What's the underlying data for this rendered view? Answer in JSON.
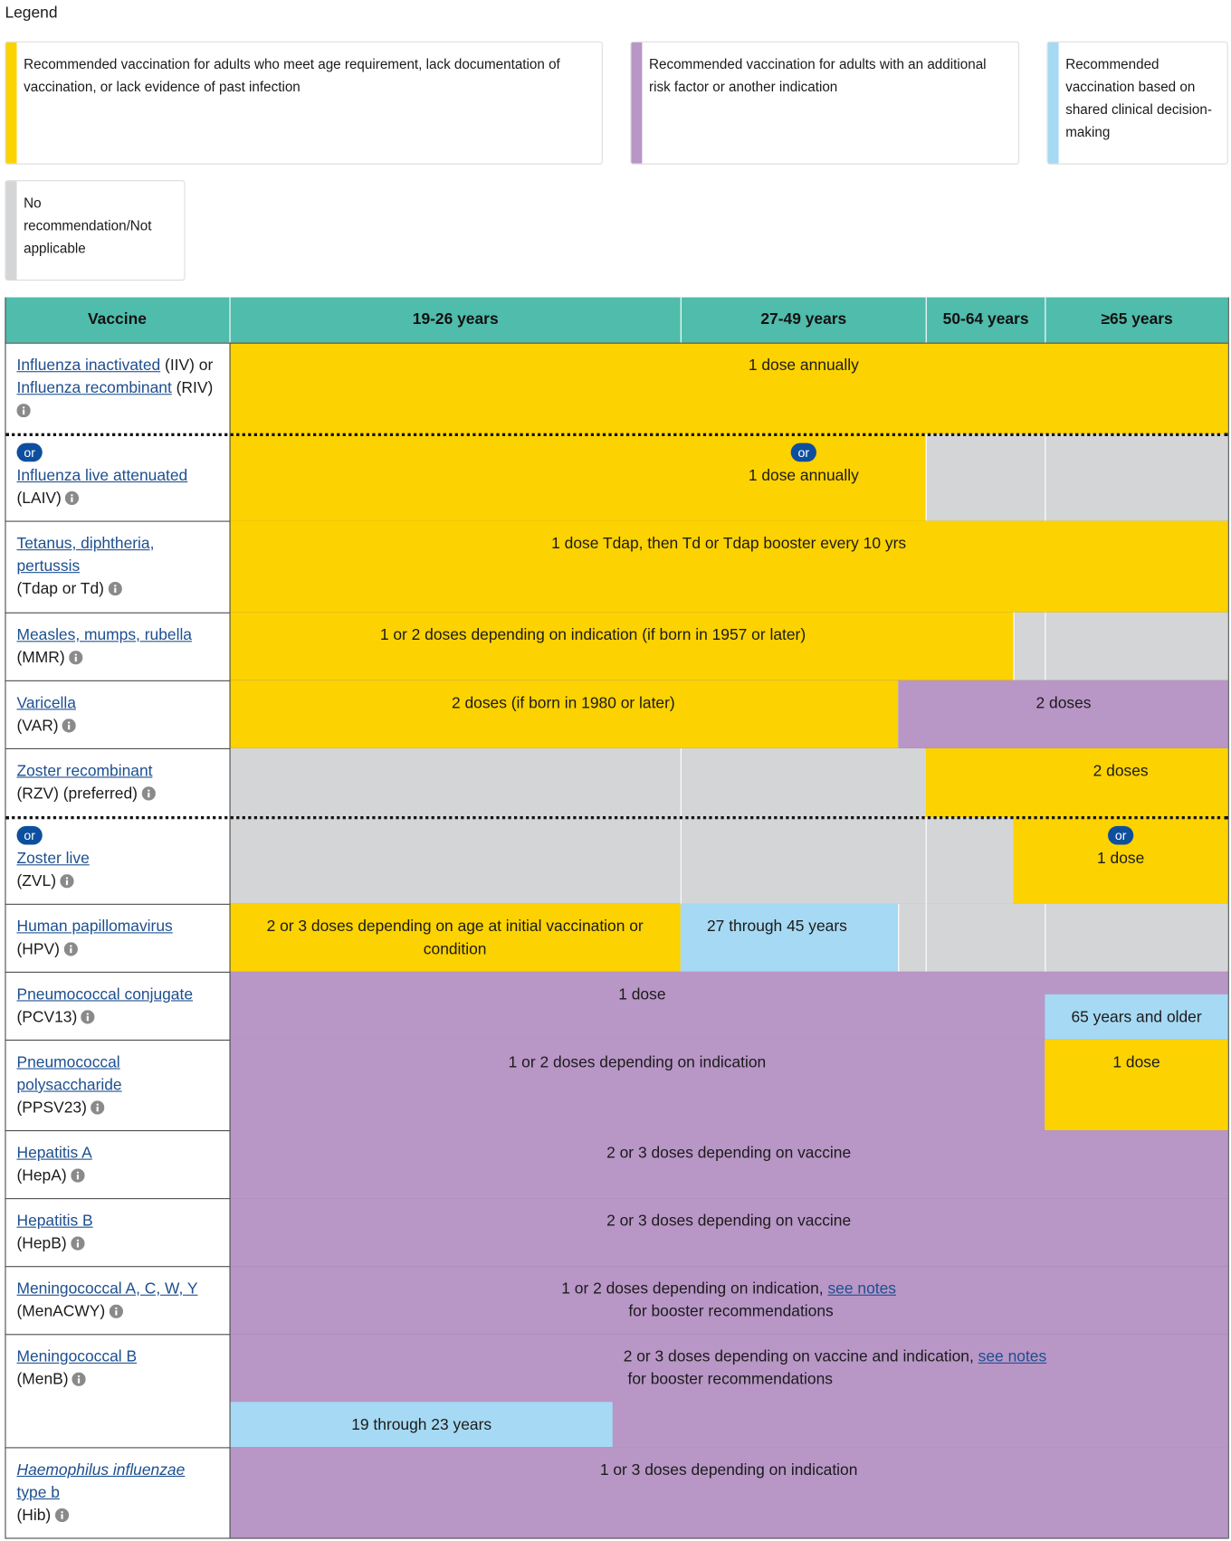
{
  "legend": {
    "title": "Legend",
    "items": [
      {
        "text": "Recommended vaccination for adults who meet age requirement, lack documentation of vaccination, or lack evidence of past infection",
        "color": "#fcd200"
      },
      {
        "text": "Recommended vaccination for adults with an additional risk factor or another indication",
        "color": "#b896c6"
      },
      {
        "text": "Recommended vaccination based on shared clinical decision-making",
        "color": "#a6d9f3"
      },
      {
        "text": "No recommendation/Not applicable",
        "color": "#d4d5d7"
      }
    ]
  },
  "table": {
    "columns": [
      "Vaccine",
      "19-26 years",
      "27-49 years",
      "50-64 years",
      "≥65 years"
    ],
    "rows": [
      {
        "name": [
          [
            {
              "link": "Influenza inactivated"
            },
            {
              "text": " (IIV) or"
            }
          ],
          [
            {
              "link": "Influenza recombinant"
            },
            {
              "text": " (RIV)"
            }
          ]
        ],
        "segments": [
          {
            "color": "#fcd200",
            "text": "1 dose annually"
          }
        ]
      },
      {
        "badge": "or",
        "name": [
          [
            {
              "link": "Influenza live attenuated"
            }
          ],
          [
            {
              "text": "(LAIV)"
            }
          ]
        ],
        "segments": [
          {
            "color": "#fcd200",
            "badge": "or",
            "text": "1 dose annually"
          },
          {
            "color": "#d4d5d7"
          },
          {
            "color": "#d4d5d7"
          }
        ]
      },
      {
        "name": [
          [
            {
              "link": "Tetanus, diphtheria,"
            }
          ],
          [
            {
              "link": "pertussis"
            }
          ],
          [
            {
              "text": "(Tdap or Td)"
            }
          ]
        ],
        "segments": [
          {
            "color": "#fcd200",
            "text": "1 dose Tdap, then Td or Tdap booster every 10 yrs"
          }
        ]
      },
      {
        "name": [
          [
            {
              "link": "Measles, mumps, rubella"
            }
          ],
          [
            {
              "text": "(MMR)"
            }
          ]
        ],
        "segments": [
          {
            "color": "#fcd200",
            "text": "1 or 2 doses depending on indication (if born in 1957 or later)"
          },
          {
            "color": "#d4d5d7"
          },
          {
            "color": "#d4d5d7"
          }
        ]
      },
      {
        "name": [
          [
            {
              "link": "Varicella"
            }
          ],
          [
            {
              "text": "(VAR)"
            }
          ]
        ],
        "segments": [
          {
            "color": "#fcd200",
            "text": "2 doses (if born in 1980 or later)"
          },
          {
            "color": "#b896c6",
            "text": "2 doses"
          }
        ]
      },
      {
        "name": [
          [
            {
              "link": "Zoster recombinant"
            }
          ],
          [
            {
              "text": "(RZV) (preferred)"
            }
          ]
        ],
        "segments": [
          {
            "color": "#d4d5d7"
          },
          {
            "color": "#d4d5d7"
          },
          {
            "color": "#fcd200",
            "text": "2 doses"
          }
        ]
      },
      {
        "badge": "or",
        "name": [
          [
            {
              "link": "Zoster live"
            }
          ],
          [
            {
              "text": "(ZVL)"
            }
          ]
        ],
        "segments": [
          {
            "color": "#d4d5d7"
          },
          {
            "color": "#d4d5d7"
          },
          {
            "color": "#d4d5d7"
          },
          {
            "color": "#fcd200",
            "badge": "or",
            "text": "1 dose"
          }
        ]
      },
      {
        "name": [
          [
            {
              "link": "Human papillomavirus"
            }
          ],
          [
            {
              "text": "(HPV)"
            }
          ]
        ],
        "segments": [
          {
            "color": "#fcd200",
            "text": "2 or 3 doses depending on age at initial vaccination or condition"
          },
          {
            "color": "#a6d9f3",
            "text": "27 through 45 years"
          },
          {
            "color": "#d4d5d7"
          },
          {
            "color": "#d4d5d7"
          },
          {
            "color": "#d4d5d7"
          }
        ]
      },
      {
        "name": [
          [
            {
              "link": "Pneumococcal conjugate"
            }
          ],
          [
            {
              "text": "(PCV13)"
            }
          ]
        ],
        "segments": [
          {
            "color": "#b896c6",
            "text": "1 dose"
          },
          {
            "color": "#a6d9f3",
            "text": "65 years and older"
          }
        ]
      },
      {
        "name": [
          [
            {
              "link": "Pneumococcal"
            }
          ],
          [
            {
              "link": "polysaccharide"
            }
          ],
          [
            {
              "text": "(PPSV23)"
            }
          ]
        ],
        "segments": [
          {
            "color": "#b896c6",
            "text": "1 or 2 doses depending on indication"
          },
          {
            "color": "#fcd200",
            "text": "1 dose"
          }
        ]
      },
      {
        "name": [
          [
            {
              "link": "Hepatitis A"
            }
          ],
          [
            {
              "text": "(HepA)"
            }
          ]
        ],
        "segments": [
          {
            "color": "#b896c6",
            "text": "2 or 3 doses depending on vaccine"
          }
        ]
      },
      {
        "name": [
          [
            {
              "link": "Hepatitis B"
            }
          ],
          [
            {
              "text": "(HepB)"
            }
          ]
        ],
        "segments": [
          {
            "color": "#b896c6",
            "text": "2 or 3 doses depending on vaccine"
          }
        ]
      },
      {
        "name": [
          [
            {
              "link": "Meningococcal A, C, W, Y"
            }
          ],
          [
            {
              "text": "(MenACWY)"
            }
          ]
        ],
        "segments": [
          {
            "color": "#b896c6",
            "text": [
              {
                "text": "1 or 2 doses depending on indication, "
              },
              {
                "link": "see notes"
              },
              {
                "text": " for booster recommendations"
              }
            ]
          }
        ]
      },
      {
        "name": [
          [
            {
              "link": "Meningococcal B"
            }
          ],
          [
            {
              "text": "(MenB)"
            }
          ]
        ],
        "segments": [
          {
            "color": "#b896c6",
            "text": [
              {
                "text": "2 or 3 doses depending on vaccine and indication, "
              },
              {
                "link": "see notes"
              },
              {
                "text": " for booster recommendations"
              }
            ]
          },
          {
            "color": "#a6d9f3",
            "text": "19 through 23 years"
          }
        ]
      },
      {
        "name": [
          [
            {
              "link": "Haemophilus influenzae",
              "italic": true
            }
          ],
          [
            {
              "link": "type b"
            }
          ],
          [
            {
              "text": "(Hib)"
            }
          ]
        ],
        "segments": [
          {
            "color": "#b896c6",
            "text": "1 or 3 doses depending on indication"
          }
        ]
      }
    ]
  }
}
